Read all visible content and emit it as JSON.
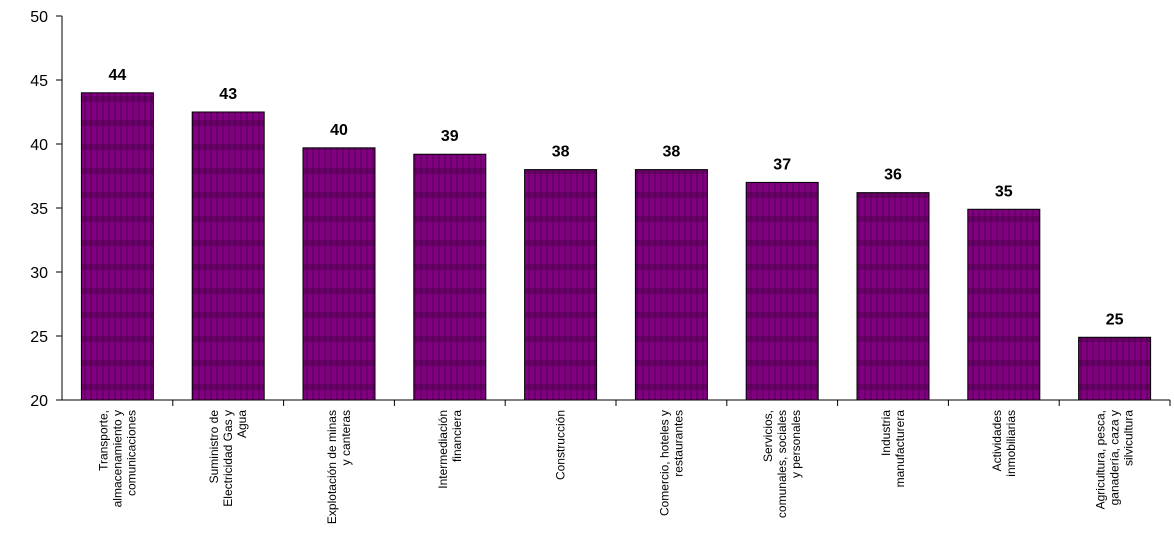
{
  "chart_data": {
    "type": "bar",
    "categories": [
      "Transporte, almacenamiento y comunicaciones",
      "Suministro de Electricidad Gas y Agua",
      "Explotación de minas y canteras",
      "Intermediación financiera",
      "Construcción",
      "Comercio, hoteles y restaurantes",
      "Servicios, comunales, sociales y personales",
      "Industria manufacturera",
      "Actividades inmobiliarias",
      "Agricultura, pesca, ganadería, caza y silvicultura"
    ],
    "values": [
      44.0,
      42.5,
      39.7,
      39.2,
      38.0,
      38.0,
      37.0,
      36.2,
      34.9,
      24.9
    ],
    "value_labels": [
      "44",
      "43",
      "40",
      "39",
      "38",
      "38",
      "37",
      "36",
      "35",
      "25"
    ],
    "color": "#800080",
    "ylim": [
      20,
      50
    ],
    "yticks": [
      20,
      25,
      30,
      35,
      40,
      45,
      50
    ],
    "grid": false
  }
}
